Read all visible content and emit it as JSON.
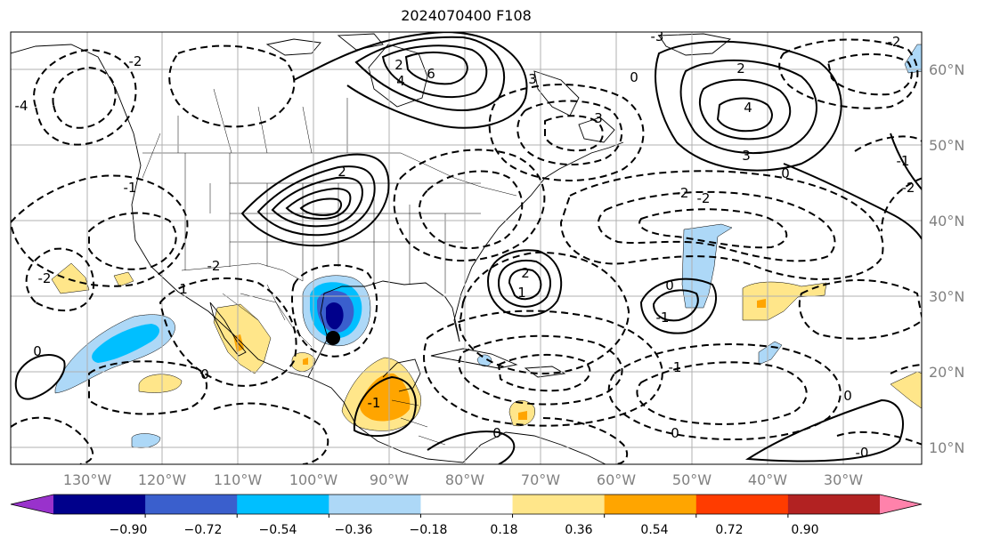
{
  "title": "2024070400 F108",
  "lon_labels": [
    "130°W",
    "120°W",
    "110°W",
    "100°W",
    "90°W",
    "80°W",
    "70°W",
    "60°W",
    "50°W",
    "40°W",
    "30°W"
  ],
  "lat_labels": [
    "60°N",
    "50°N",
    "40°N",
    "30°N",
    "20°N",
    "10°N"
  ],
  "colorbar": {
    "tick_labels": [
      "−0.90",
      "−0.72",
      "−0.54",
      "−0.36",
      "−0.18",
      "0.18",
      "0.36",
      "0.54",
      "0.72",
      "0.90"
    ],
    "colors": [
      "#9932cc",
      "#00008b",
      "#3a5fcd",
      "#00bfff",
      "#add8f7",
      "#ffffff",
      "#ffe68a",
      "#ffa500",
      "#ff3c00",
      "#b22222",
      "#ff82ab"
    ],
    "extend": "both"
  },
  "contour_labels": [
    {
      "text": "2"
    },
    {
      "text": "4"
    },
    {
      "text": "6"
    },
    {
      "text": "2"
    },
    {
      "text": "-2"
    },
    {
      "text": "-2"
    },
    {
      "text": "2"
    },
    {
      "text": "4"
    },
    {
      "text": "3"
    },
    {
      "text": "0"
    },
    {
      "text": "-3"
    },
    {
      "text": "-2"
    },
    {
      "text": "3"
    },
    {
      "text": "-2"
    },
    {
      "text": "-2"
    },
    {
      "text": "2"
    },
    {
      "text": "1"
    },
    {
      "text": "-1"
    },
    {
      "text": "0"
    },
    {
      "text": "-1"
    },
    {
      "text": "0"
    },
    {
      "text": "0"
    },
    {
      "text": "0"
    },
    {
      "text": "-1"
    },
    {
      "text": "-0"
    },
    {
      "text": "0"
    },
    {
      "text": "-4"
    },
    {
      "text": "-1"
    },
    {
      "text": "1"
    },
    {
      "text": "-2"
    },
    {
      "text": "0"
    },
    {
      "text": "-2"
    },
    {
      "text": "-1"
    },
    {
      "text": "3"
    },
    {
      "text": "0"
    }
  ],
  "marker": {
    "name": "storm-center",
    "lon": -96,
    "lat": 24.5
  },
  "colors": {
    "grid": "#b0b0b0",
    "contour": "#000000",
    "border": "#000000"
  }
}
